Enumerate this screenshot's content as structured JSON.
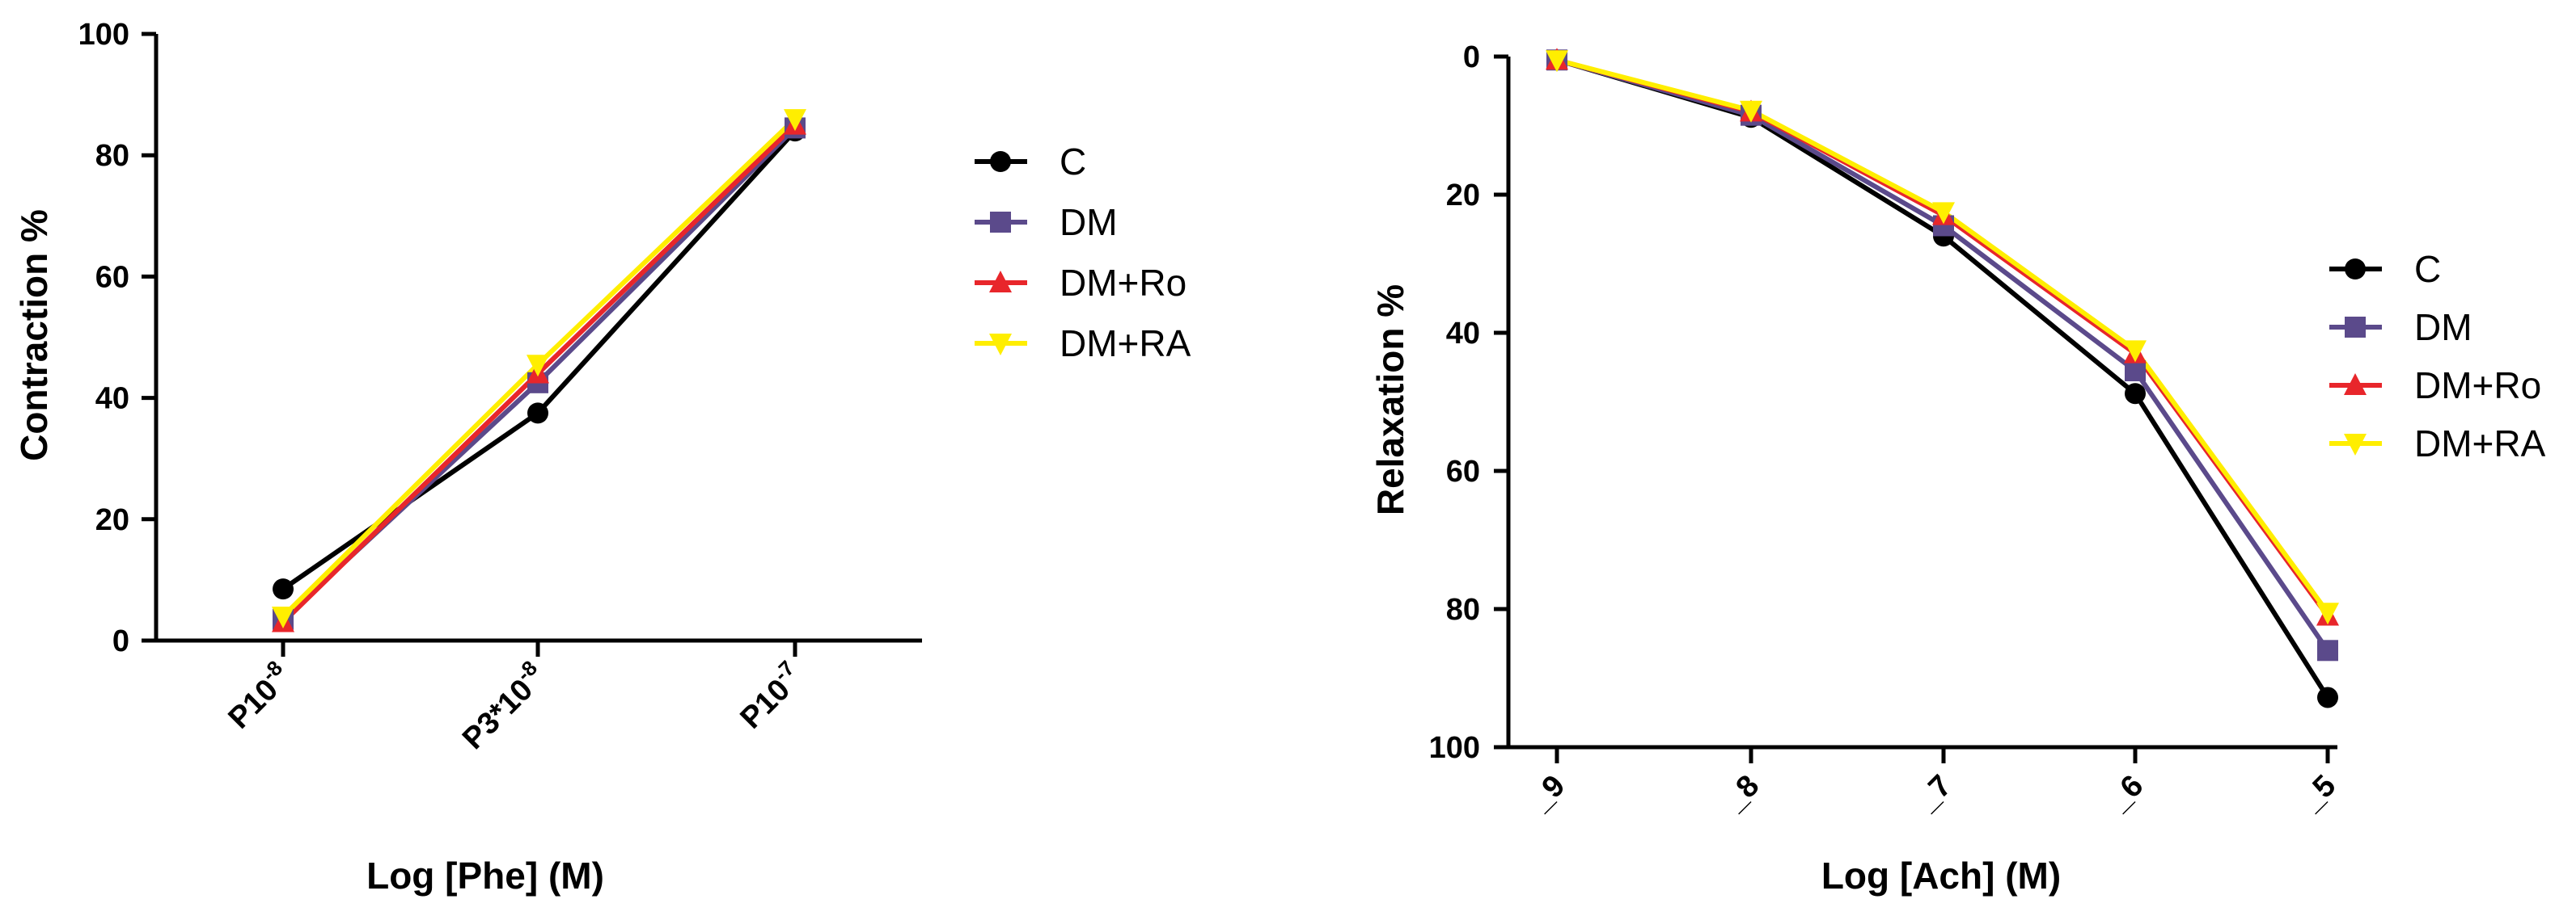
{
  "chart_data": [
    {
      "type": "line",
      "title": "",
      "xlabel": "Log [Phe] (M)",
      "ylabel": "Contraction %",
      "ylim": [
        0,
        100
      ],
      "yticks": [
        "0",
        "20",
        "40",
        "60",
        "80",
        "100"
      ],
      "categories": [
        {
          "base": "P10",
          "sup": "-8"
        },
        {
          "base": "P3*10",
          "sup": "-8"
        },
        {
          "base": "P10",
          "sup": "-7"
        }
      ],
      "legend_position": "right",
      "series": [
        {
          "name": "C",
          "marker": "circle",
          "color": "#000000",
          "values": [
            8.5,
            37.5,
            84
          ]
        },
        {
          "name": "DM",
          "marker": "square",
          "color": "#5b4a8b",
          "values": [
            3.5,
            42.5,
            84.5
          ]
        },
        {
          "name": "DM+Ro",
          "marker": "triangle-up",
          "color": "#e8262b",
          "values": [
            3,
            44,
            85
          ]
        },
        {
          "name": "DM+RA",
          "marker": "triangle-down",
          "color": "#ffee00",
          "values": [
            4,
            45.5,
            86
          ]
        }
      ]
    },
    {
      "type": "line",
      "title": "",
      "xlabel": "Log [Ach] (M)",
      "ylabel": "Relaxation %",
      "ylim": [
        0,
        100
      ],
      "y_inverted": true,
      "yticks": [
        "0",
        "20",
        "40",
        "60",
        "80",
        "100"
      ],
      "categories": [
        "_9",
        "_8",
        "_7",
        "_6",
        "_5"
      ],
      "legend_position": "right",
      "series": [
        {
          "name": "C",
          "marker": "circle",
          "color": "#000000",
          "values": [
            0.5,
            8.8,
            26,
            48.8,
            92.8
          ]
        },
        {
          "name": "DM",
          "marker": "square",
          "color": "#5b4a8b",
          "values": [
            0.5,
            8.5,
            24.5,
            45.5,
            86
          ]
        },
        {
          "name": "DM+Ro",
          "marker": "triangle-up",
          "color": "#e8262b",
          "values": [
            0.5,
            8,
            23,
            43,
            81
          ]
        },
        {
          "name": "DM+RA",
          "marker": "triangle-down",
          "color": "#ffee00",
          "values": [
            0.5,
            7.8,
            22.5,
            42.5,
            80.5
          ]
        }
      ]
    }
  ]
}
